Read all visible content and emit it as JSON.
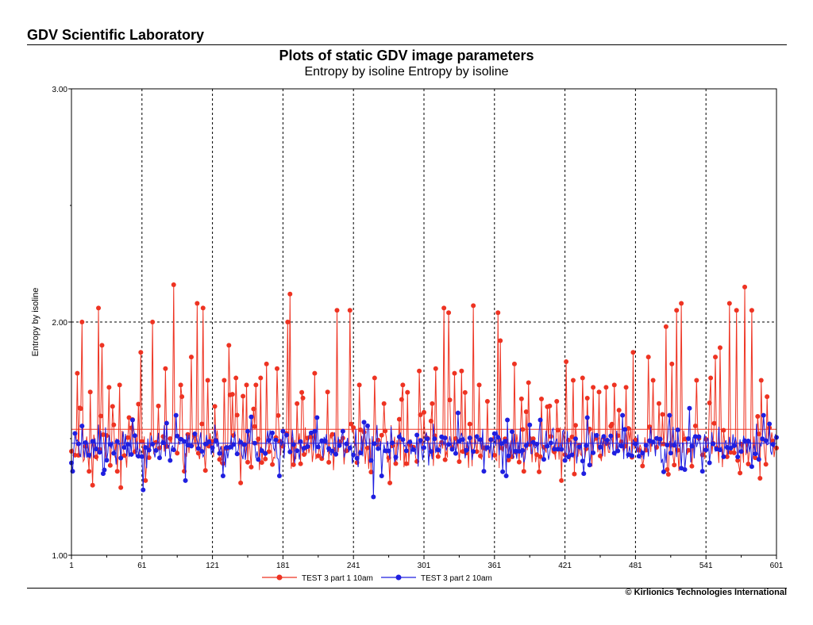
{
  "header": {
    "lab_title": "GDV Scientific Laboratory"
  },
  "footer": {
    "copyright": "© Kirlionics Technologies International"
  },
  "chart_data": {
    "type": "line",
    "title": "Plots of static GDV image parameters",
    "subtitle": "Entropy by isoline Entropy by isoline",
    "xlabel": "",
    "ylabel": "Entropy by isoline",
    "xlim": [
      1,
      601
    ],
    "ylim": [
      1.0,
      3.0
    ],
    "x_ticks": [
      1,
      61,
      121,
      181,
      241,
      301,
      361,
      421,
      481,
      541,
      601
    ],
    "y_ticks": [
      "1.00",
      "2.00",
      "3.00"
    ],
    "grid": "dashed vertical at each x tick, dashed horizontal at 2.00",
    "legend_position": "bottom",
    "series": [
      {
        "name": "TEST 3 part 1 10am",
        "color": "#ee3322",
        "marker": "circle",
        "baseline": 1.46,
        "spread": 0.05,
        "mean_line": 1.54,
        "seed": 17,
        "peaks": [
          [
            6,
            1.78
          ],
          [
            10,
            2.0
          ],
          [
            17,
            1.7
          ],
          [
            24,
            2.06
          ],
          [
            27,
            1.9
          ],
          [
            33,
            1.72
          ],
          [
            42,
            1.73
          ],
          [
            50,
            1.59
          ],
          [
            60,
            1.87
          ],
          [
            70,
            2.0
          ],
          [
            75,
            1.64
          ],
          [
            81,
            1.8
          ],
          [
            88,
            2.16
          ],
          [
            94,
            1.73
          ],
          [
            103,
            1.85
          ],
          [
            108,
            2.08
          ],
          [
            113,
            2.06
          ],
          [
            117,
            1.75
          ],
          [
            131,
            1.75
          ],
          [
            135,
            1.9
          ],
          [
            141,
            1.76
          ],
          [
            150,
            1.73
          ],
          [
            158,
            1.73
          ],
          [
            162,
            1.76
          ],
          [
            167,
            1.82
          ],
          [
            176,
            1.8
          ],
          [
            185,
            2.0
          ],
          [
            187,
            2.12
          ],
          [
            193,
            1.65
          ],
          [
            208,
            1.78
          ],
          [
            219,
            1.7
          ],
          [
            227,
            2.05
          ],
          [
            238,
            2.05
          ],
          [
            246,
            1.73
          ],
          [
            259,
            1.76
          ],
          [
            267,
            1.65
          ],
          [
            283,
            1.73
          ],
          [
            297,
            1.79
          ],
          [
            308,
            1.65
          ],
          [
            311,
            1.8
          ],
          [
            318,
            2.06
          ],
          [
            322,
            2.04
          ],
          [
            327,
            1.78
          ],
          [
            333,
            1.79
          ],
          [
            343,
            2.07
          ],
          [
            348,
            1.73
          ],
          [
            355,
            1.66
          ],
          [
            364,
            2.04
          ],
          [
            366,
            1.92
          ],
          [
            378,
            1.82
          ],
          [
            390,
            1.74
          ],
          [
            401,
            1.67
          ],
          [
            408,
            1.64
          ],
          [
            414,
            1.66
          ],
          [
            422,
            1.83
          ],
          [
            428,
            1.75
          ],
          [
            436,
            1.76
          ],
          [
            445,
            1.72
          ],
          [
            456,
            1.72
          ],
          [
            463,
            1.73
          ],
          [
            473,
            1.72
          ],
          [
            479,
            1.87
          ],
          [
            492,
            1.85
          ],
          [
            496,
            1.75
          ],
          [
            507,
            1.98
          ],
          [
            512,
            1.82
          ],
          [
            516,
            2.05
          ],
          [
            520,
            2.08
          ],
          [
            533,
            1.75
          ],
          [
            545,
            1.76
          ],
          [
            549,
            1.85
          ],
          [
            553,
            1.89
          ],
          [
            561,
            2.08
          ],
          [
            567,
            2.05
          ],
          [
            574,
            2.15
          ],
          [
            580,
            2.05
          ],
          [
            588,
            1.75
          ],
          [
            593,
            1.68
          ]
        ],
        "dips": [
          [
            19,
            1.3
          ],
          [
            43,
            1.29
          ],
          [
            64,
            1.32
          ],
          [
            97,
            1.36
          ],
          [
            145,
            1.31
          ],
          [
            272,
            1.31
          ],
          [
            418,
            1.32
          ],
          [
            587,
            1.33
          ]
        ]
      },
      {
        "name": "TEST 3 part 2 10am",
        "color": "#1f1fe0",
        "marker": "circle",
        "baseline": 1.47,
        "spread": 0.045,
        "mean_line": 1.48,
        "seed": 91,
        "peaks": [
          [
            24,
            1.56
          ],
          [
            53,
            1.58
          ],
          [
            90,
            1.6
          ],
          [
            123,
            1.56
          ],
          [
            210,
            1.59
          ],
          [
            250,
            1.57
          ],
          [
            330,
            1.61
          ],
          [
            372,
            1.58
          ],
          [
            400,
            1.58
          ],
          [
            440,
            1.59
          ],
          [
            470,
            1.6
          ],
          [
            510,
            1.6
          ],
          [
            527,
            1.63
          ],
          [
            590,
            1.6
          ]
        ],
        "dips": [
          [
            2,
            1.36
          ],
          [
            28,
            1.35
          ],
          [
            62,
            1.28
          ],
          [
            98,
            1.32
          ],
          [
            130,
            1.34
          ],
          [
            178,
            1.34
          ],
          [
            258,
            1.25
          ],
          [
            265,
            1.34
          ],
          [
            296,
            1.38
          ],
          [
            352,
            1.36
          ],
          [
            371,
            1.34
          ],
          [
            437,
            1.35
          ],
          [
            538,
            1.36
          ],
          [
            580,
            1.38
          ]
        ]
      }
    ]
  }
}
